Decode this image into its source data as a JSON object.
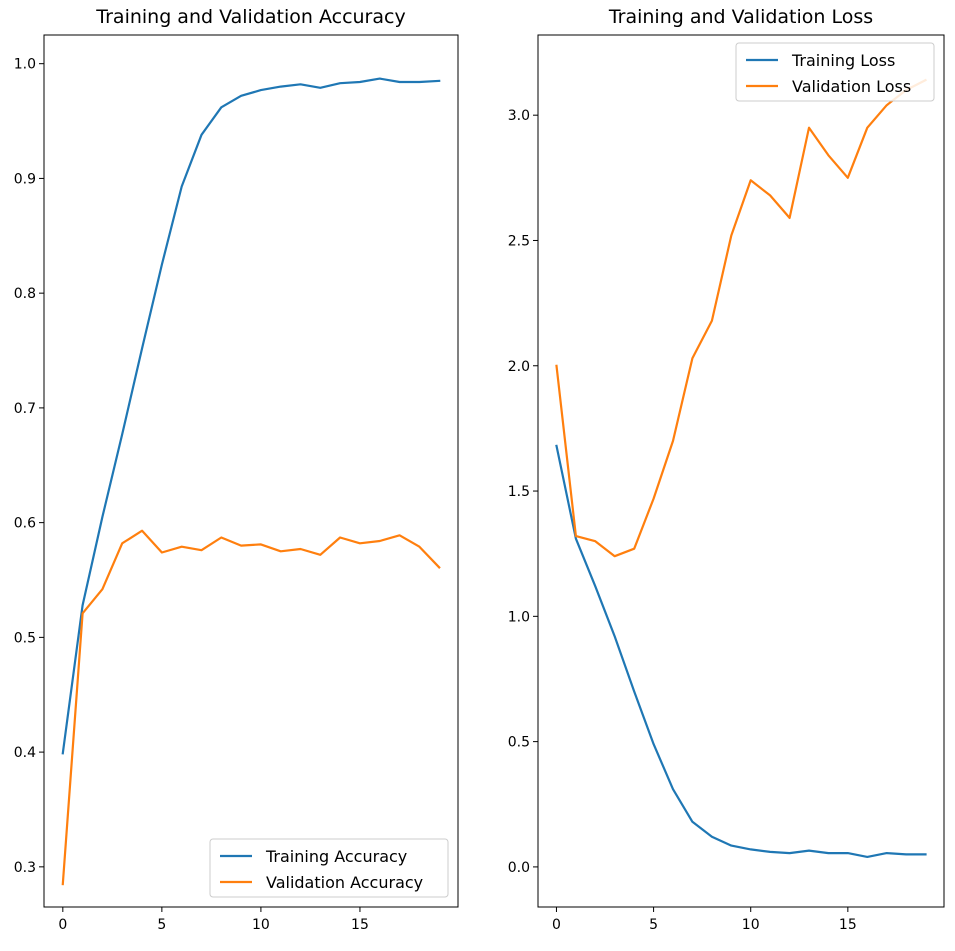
{
  "chart_data": [
    {
      "type": "line",
      "title": "Training and Validation Accuracy",
      "xlabel": "",
      "ylabel": "",
      "xlim": [
        -0.95,
        19.95
      ],
      "ylim": [
        0.265,
        1.025
      ],
      "xticks": [
        0,
        5,
        10,
        15
      ],
      "yticks": [
        0.3,
        0.4,
        0.5,
        0.6,
        0.7,
        0.8,
        0.9,
        1.0
      ],
      "ytick_labels": [
        "0.3",
        "0.4",
        "0.5",
        "0.6",
        "0.7",
        "0.8",
        "0.9",
        "1.0"
      ],
      "grid": false,
      "legend_position": "lower right",
      "x": [
        0,
        1,
        2,
        3,
        4,
        5,
        6,
        7,
        8,
        9,
        10,
        11,
        12,
        13,
        14,
        15,
        16,
        17,
        18,
        19
      ],
      "series": [
        {
          "name": "Training Accuracy",
          "color": "#1f77b4",
          "values": [
            0.399,
            0.528,
            0.605,
            0.677,
            0.752,
            0.825,
            0.893,
            0.938,
            0.962,
            0.972,
            0.977,
            0.98,
            0.982,
            0.979,
            0.983,
            0.984,
            0.987,
            0.984,
            0.984,
            0.985
          ]
        },
        {
          "name": "Validation Accuracy",
          "color": "#ff7f0e",
          "values": [
            0.285,
            0.521,
            0.542,
            0.582,
            0.593,
            0.574,
            0.579,
            0.576,
            0.587,
            0.58,
            0.581,
            0.575,
            0.577,
            0.572,
            0.587,
            0.582,
            0.584,
            0.589,
            0.579,
            0.561
          ]
        }
      ]
    },
    {
      "type": "line",
      "title": "Training and Validation Loss",
      "xlabel": "",
      "ylabel": "",
      "xlim": [
        -0.95,
        19.95
      ],
      "ylim": [
        -0.16,
        3.32
      ],
      "xticks": [
        0,
        5,
        10,
        15
      ],
      "yticks": [
        0.0,
        0.5,
        1.0,
        1.5,
        2.0,
        2.5,
        3.0
      ],
      "ytick_labels": [
        "0.0",
        "0.5",
        "1.0",
        "1.5",
        "2.0",
        "2.5",
        "3.0"
      ],
      "grid": false,
      "legend_position": "upper right",
      "x": [
        0,
        1,
        2,
        3,
        4,
        5,
        6,
        7,
        8,
        9,
        10,
        11,
        12,
        13,
        14,
        15,
        16,
        17,
        18,
        19
      ],
      "series": [
        {
          "name": "Training Loss",
          "color": "#1f77b4",
          "values": [
            1.68,
            1.31,
            1.12,
            0.92,
            0.7,
            0.49,
            0.31,
            0.18,
            0.12,
            0.085,
            0.07,
            0.06,
            0.055,
            0.065,
            0.055,
            0.055,
            0.04,
            0.055,
            0.05,
            0.05
          ]
        },
        {
          "name": "Validation Loss",
          "color": "#ff7f0e",
          "values": [
            2.0,
            1.32,
            1.3,
            1.24,
            1.27,
            1.47,
            1.7,
            2.03,
            2.18,
            2.52,
            2.74,
            2.68,
            2.59,
            2.95,
            2.84,
            2.75,
            2.95,
            3.04,
            3.1,
            3.14
          ]
        }
      ]
    }
  ]
}
